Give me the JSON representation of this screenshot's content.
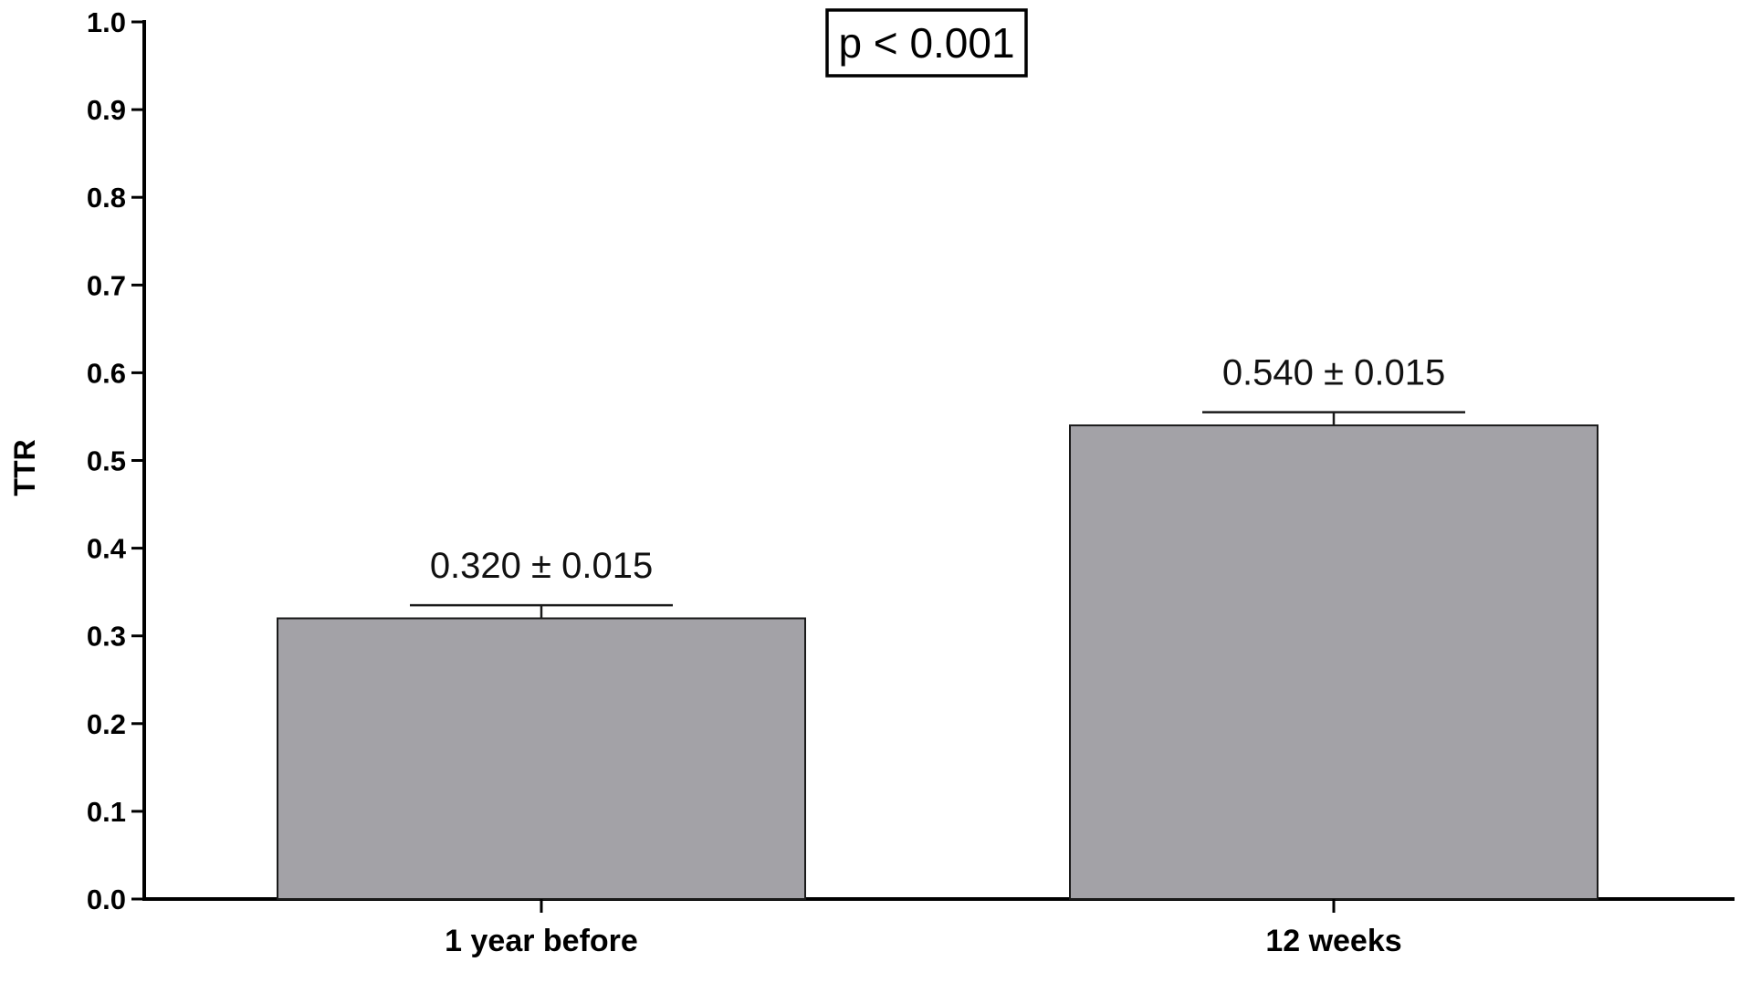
{
  "chart_data": {
    "type": "bar",
    "categories": [
      "1 year before",
      "12 weeks"
    ],
    "values": [
      0.32,
      0.54
    ],
    "errors": [
      0.015,
      0.015
    ],
    "data_labels": [
      "0.320 ± 0.015",
      "0.540 ± 0.015"
    ],
    "title": "",
    "xlabel": "",
    "ylabel": "TTR",
    "ylim": [
      0,
      1.0
    ],
    "yticks": [
      0.0,
      0.1,
      0.2,
      0.3,
      0.4,
      0.5,
      0.6,
      0.7,
      0.8,
      0.9,
      1.0
    ],
    "ytick_labels": [
      "0.0",
      "0.1",
      "0.2",
      "0.3",
      "0.4",
      "0.5",
      "0.6",
      "0.7",
      "0.8",
      "0.9",
      "1.0"
    ],
    "annotation": "p < 0.001",
    "grid": false,
    "legend": "none",
    "bar_color": "#a3a2a7",
    "axis_color": "#000000"
  }
}
